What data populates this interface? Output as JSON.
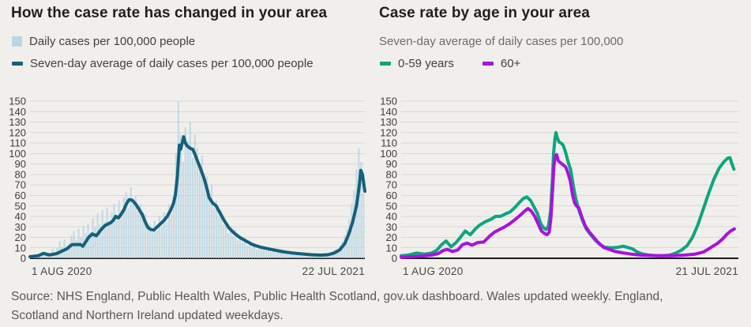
{
  "source_note": {
    "line1": "Source: NHS England, Public Health Wales, Public Health Scotland, gov.uk dashboard. Wales updated weekly. England,",
    "line2": "Scotland and Northern Ireland updated weekdays."
  },
  "colors": {
    "background": "#f1efec",
    "grid": "#d8d7d4",
    "axis": "#1a1a1a",
    "tick_text": "#3e3e3e",
    "date_text": "#454545"
  },
  "chart_data": [
    {
      "id": "case-rate-trend",
      "type": "bar+line",
      "title": "How the case rate has changed in your area",
      "x_axis": {
        "start_label": "1 AUG 2020",
        "end_label": "22 JUL 2021"
      },
      "y_axis": {
        "min": 0,
        "max": 150,
        "tick_step": 10
      },
      "grid": true,
      "series": [
        {
          "name": "Daily cases per 100,000 people",
          "type": "bar",
          "color": "#b9d6e2",
          "values": [
            2,
            1,
            3,
            4,
            2,
            5,
            6,
            3,
            5,
            9,
            4,
            10,
            16,
            11,
            18,
            12,
            15,
            22,
            26,
            17,
            28,
            20,
            31,
            24,
            33,
            25,
            38,
            30,
            43,
            32,
            46,
            35,
            48,
            36,
            44,
            52,
            41,
            55,
            46,
            58,
            63,
            48,
            68,
            53,
            60,
            45,
            52,
            38,
            42,
            28,
            33,
            25,
            36,
            26,
            40,
            30,
            44,
            34,
            52,
            42,
            60,
            100,
            150,
            118,
            92,
            125,
            112,
            130,
            96,
            118,
            105,
            85,
            98,
            70,
            78,
            58,
            70,
            48,
            55,
            40,
            46,
            32,
            36,
            24,
            30,
            21,
            27,
            17,
            22,
            15,
            19,
            12,
            16,
            10,
            14,
            8,
            12,
            9,
            11,
            7,
            10,
            6,
            9,
            5,
            8,
            6,
            7,
            4,
            6,
            5,
            6,
            3,
            5,
            4,
            5,
            2,
            4,
            3,
            4,
            2,
            3,
            4,
            2,
            4,
            3,
            5,
            6,
            4,
            8,
            9,
            12,
            16,
            22,
            28,
            38,
            52,
            65,
            85,
            105,
            92,
            62
          ]
        },
        {
          "name": "Seven-day average of daily cases per 100,000 people",
          "type": "line",
          "color": "#15607b",
          "points": [
            [
              0,
              1.5
            ],
            [
              0.025,
              2.5
            ],
            [
              0.04,
              4.7
            ],
            [
              0.058,
              3.2
            ],
            [
              0.08,
              4.5
            ],
            [
              0.11,
              9
            ],
            [
              0.125,
              13
            ],
            [
              0.15,
              13.2
            ],
            [
              0.158,
              11.5
            ],
            [
              0.175,
              20
            ],
            [
              0.186,
              23.2
            ],
            [
              0.198,
              21.5
            ],
            [
              0.213,
              27.7
            ],
            [
              0.225,
              31.5
            ],
            [
              0.241,
              34
            ],
            [
              0.248,
              36
            ],
            [
              0.256,
              40
            ],
            [
              0.264,
              38.5
            ],
            [
              0.272,
              42
            ],
            [
              0.28,
              46
            ],
            [
              0.288,
              52
            ],
            [
              0.296,
              56
            ],
            [
              0.305,
              55.5
            ],
            [
              0.315,
              52
            ],
            [
              0.325,
              47
            ],
            [
              0.335,
              42
            ],
            [
              0.345,
              34
            ],
            [
              0.352,
              29.5
            ],
            [
              0.36,
              27.5
            ],
            [
              0.37,
              27
            ],
            [
              0.38,
              30
            ],
            [
              0.39,
              33
            ],
            [
              0.4,
              36
            ],
            [
              0.41,
              40
            ],
            [
              0.42,
              46
            ],
            [
              0.428,
              52
            ],
            [
              0.434,
              60
            ],
            [
              0.44,
              78
            ],
            [
              0.446,
              108
            ],
            [
              0.45,
              104
            ],
            [
              0.456,
              112
            ],
            [
              0.459,
              116
            ],
            [
              0.464,
              110
            ],
            [
              0.47,
              107
            ],
            [
              0.478,
              105
            ],
            [
              0.486,
              104
            ],
            [
              0.493,
              99
            ],
            [
              0.5,
              93
            ],
            [
              0.51,
              85
            ],
            [
              0.52,
              76
            ],
            [
              0.528,
              67
            ],
            [
              0.535,
              58
            ],
            [
              0.545,
              53
            ],
            [
              0.556,
              50
            ],
            [
              0.568,
              43
            ],
            [
              0.58,
              36
            ],
            [
              0.594,
              29
            ],
            [
              0.61,
              24
            ],
            [
              0.626,
              20
            ],
            [
              0.642,
              17
            ],
            [
              0.665,
              13
            ],
            [
              0.69,
              10.5
            ],
            [
              0.712,
              9
            ],
            [
              0.736,
              7.5
            ],
            [
              0.76,
              6
            ],
            [
              0.785,
              5
            ],
            [
              0.81,
              4.2
            ],
            [
              0.84,
              3.4
            ],
            [
              0.868,
              3
            ],
            [
              0.89,
              3.4
            ],
            [
              0.908,
              5
            ],
            [
              0.925,
              8
            ],
            [
              0.94,
              14
            ],
            [
              0.952,
              23
            ],
            [
              0.964,
              35
            ],
            [
              0.975,
              50
            ],
            [
              0.982,
              66
            ],
            [
              0.988,
              84
            ],
            [
              0.993,
              80
            ],
            [
              1,
              64
            ]
          ]
        }
      ]
    },
    {
      "id": "case-rate-by-age",
      "type": "line",
      "title": "Case rate by age in your area",
      "subtitle": "Seven-day average of daily cases per 100,000",
      "x_axis": {
        "start_label": "1 AUG 2020",
        "end_label": "21 JUL 2021"
      },
      "y_axis": {
        "min": 0,
        "max": 150,
        "tick_step": 10
      },
      "grid": true,
      "series": [
        {
          "name": "0-59 years",
          "type": "line",
          "color": "#0ba67c",
          "points": [
            [
              0,
              2.5
            ],
            [
              0.02,
              3
            ],
            [
              0.045,
              5
            ],
            [
              0.07,
              4
            ],
            [
              0.09,
              5
            ],
            [
              0.105,
              7.5
            ],
            [
              0.12,
              13
            ],
            [
              0.133,
              16.5
            ],
            [
              0.148,
              11
            ],
            [
              0.163,
              15
            ],
            [
              0.178,
              21
            ],
            [
              0.19,
              26
            ],
            [
              0.205,
              22.5
            ],
            [
              0.22,
              28
            ],
            [
              0.232,
              31.5
            ],
            [
              0.25,
              35
            ],
            [
              0.265,
              37
            ],
            [
              0.28,
              40
            ],
            [
              0.295,
              40
            ],
            [
              0.31,
              42.5
            ],
            [
              0.322,
              44
            ],
            [
              0.336,
              48
            ],
            [
              0.35,
              53
            ],
            [
              0.362,
              57
            ],
            [
              0.373,
              58.5
            ],
            [
              0.384,
              55
            ],
            [
              0.394,
              49
            ],
            [
              0.404,
              43
            ],
            [
              0.414,
              33
            ],
            [
              0.422,
              29
            ],
            [
              0.43,
              27.5
            ],
            [
              0.437,
              31
            ],
            [
              0.443,
              45
            ],
            [
              0.448,
              72
            ],
            [
              0.452,
              100
            ],
            [
              0.456,
              114
            ],
            [
              0.459,
              120
            ],
            [
              0.463,
              115
            ],
            [
              0.468,
              111
            ],
            [
              0.474,
              110
            ],
            [
              0.48,
              108
            ],
            [
              0.487,
              102
            ],
            [
              0.495,
              92
            ],
            [
              0.503,
              84
            ],
            [
              0.51,
              70
            ],
            [
              0.517,
              58
            ],
            [
              0.527,
              46
            ],
            [
              0.538,
              36
            ],
            [
              0.549,
              28
            ],
            [
              0.562,
              22.5
            ],
            [
              0.575,
              17.5
            ],
            [
              0.59,
              13
            ],
            [
              0.605,
              10.5
            ],
            [
              0.622,
              10
            ],
            [
              0.64,
              10.3
            ],
            [
              0.658,
              11.5
            ],
            [
              0.675,
              10
            ],
            [
              0.686,
              9
            ],
            [
              0.7,
              6
            ],
            [
              0.714,
              4.2
            ],
            [
              0.735,
              3
            ],
            [
              0.755,
              2.6
            ],
            [
              0.775,
              2.5
            ],
            [
              0.795,
              3
            ],
            [
              0.815,
              5
            ],
            [
              0.832,
              8
            ],
            [
              0.848,
              12
            ],
            [
              0.864,
              20
            ],
            [
              0.88,
              32
            ],
            [
              0.896,
              47
            ],
            [
              0.912,
              62
            ],
            [
              0.928,
              76
            ],
            [
              0.943,
              86
            ],
            [
              0.957,
              92
            ],
            [
              0.968,
              95.5
            ],
            [
              0.975,
              96
            ],
            [
              0.981,
              90
            ],
            [
              0.987,
              85
            ]
          ]
        },
        {
          "name": "60+",
          "type": "line",
          "color": "#a912dc",
          "points": [
            [
              0,
              1
            ],
            [
              0.03,
              1.5
            ],
            [
              0.06,
              2
            ],
            [
              0.09,
              3
            ],
            [
              0.11,
              4.5
            ],
            [
              0.125,
              7.5
            ],
            [
              0.137,
              8.5
            ],
            [
              0.152,
              6.5
            ],
            [
              0.168,
              8
            ],
            [
              0.182,
              13
            ],
            [
              0.196,
              14.5
            ],
            [
              0.21,
              12.5
            ],
            [
              0.227,
              15
            ],
            [
              0.245,
              15.5
            ],
            [
              0.262,
              21
            ],
            [
              0.277,
              25
            ],
            [
              0.292,
              27.5
            ],
            [
              0.307,
              30
            ],
            [
              0.322,
              33
            ],
            [
              0.338,
              37
            ],
            [
              0.353,
              41
            ],
            [
              0.366,
              45
            ],
            [
              0.376,
              47.5
            ],
            [
              0.386,
              45
            ],
            [
              0.396,
              40
            ],
            [
              0.406,
              33
            ],
            [
              0.416,
              26
            ],
            [
              0.426,
              23.5
            ],
            [
              0.433,
              22.5
            ],
            [
              0.439,
              25
            ],
            [
              0.444,
              38
            ],
            [
              0.449,
              65
            ],
            [
              0.453,
              88
            ],
            [
              0.457,
              97
            ],
            [
              0.461,
              99
            ],
            [
              0.466,
              93
            ],
            [
              0.473,
              91
            ],
            [
              0.481,
              89
            ],
            [
              0.488,
              87
            ],
            [
              0.495,
              81
            ],
            [
              0.502,
              73
            ],
            [
              0.508,
              61
            ],
            [
              0.514,
              53
            ],
            [
              0.52,
              50
            ],
            [
              0.527,
              48
            ],
            [
              0.535,
              40
            ],
            [
              0.546,
              31
            ],
            [
              0.558,
              25
            ],
            [
              0.57,
              20.5
            ],
            [
              0.583,
              15.5
            ],
            [
              0.6,
              10.5
            ],
            [
              0.617,
              8.5
            ],
            [
              0.634,
              6.5
            ],
            [
              0.655,
              5.3
            ],
            [
              0.682,
              4
            ],
            [
              0.71,
              3
            ],
            [
              0.735,
              2.7
            ],
            [
              0.765,
              2.5
            ],
            [
              0.8,
              2.5
            ],
            [
              0.84,
              3
            ],
            [
              0.872,
              4
            ],
            [
              0.897,
              6
            ],
            [
              0.917,
              10
            ],
            [
              0.937,
              14
            ],
            [
              0.952,
              18
            ],
            [
              0.966,
              23
            ],
            [
              0.977,
              26
            ],
            [
              0.988,
              28
            ]
          ]
        }
      ]
    }
  ]
}
